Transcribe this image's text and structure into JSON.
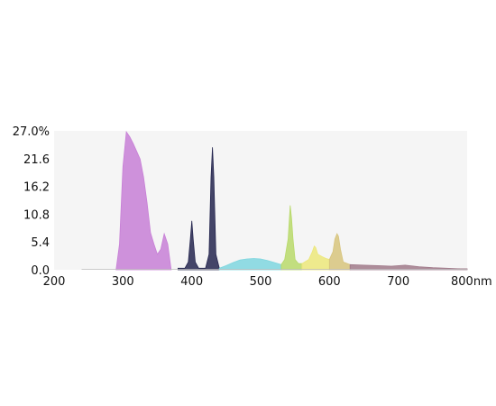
{
  "chart_data": {
    "type": "area",
    "xlim": [
      200,
      800
    ],
    "ylim": [
      0,
      27
    ],
    "yticks": [
      {
        "value": 27.0,
        "label": "27.0%"
      },
      {
        "value": 21.6,
        "label": "21.6"
      },
      {
        "value": 16.2,
        "label": "16.2"
      },
      {
        "value": 10.8,
        "label": "10.8"
      },
      {
        "value": 5.4,
        "label": "5.4"
      },
      {
        "value": 0.0,
        "label": "0.0"
      }
    ],
    "xticks": [
      {
        "value": 200,
        "label": "200"
      },
      {
        "value": 300,
        "label": "300"
      },
      {
        "value": 400,
        "label": "400"
      },
      {
        "value": 500,
        "label": "500"
      },
      {
        "value": 600,
        "label": "600"
      },
      {
        "value": 700,
        "label": "700"
      },
      {
        "value": 800,
        "label": "800nm"
      }
    ],
    "grid": false,
    "legend": "none",
    "background_color": "#f5f5f5",
    "series": [
      {
        "color": "#c77fd6",
        "x": [
          290,
          295,
          300,
          305,
          310,
          315,
          320,
          325,
          330,
          335,
          340,
          345,
          350,
          355,
          360,
          365,
          370
        ],
        "y": [
          0,
          5,
          20,
          26.8,
          25.8,
          24.5,
          23,
          21.5,
          18,
          13,
          7.2,
          5,
          3,
          4,
          7,
          5,
          0
        ]
      },
      {
        "color": "#25264f",
        "x": [
          380,
          390,
          395,
          398,
          400,
          402,
          405,
          410,
          420,
          425,
          428,
          430,
          432,
          435,
          440
        ],
        "y": [
          0.3,
          0.3,
          1.5,
          6,
          9.5,
          6,
          1.5,
          0.3,
          0.3,
          3,
          18,
          23.8,
          18,
          3,
          0.3
        ]
      },
      {
        "color": "#7fd6df",
        "x": [
          440,
          450,
          460,
          470,
          480,
          490,
          500,
          510,
          520,
          530
        ],
        "y": [
          0.3,
          0.8,
          1.4,
          1.9,
          2.1,
          2.2,
          2.1,
          1.8,
          1.4,
          1.0
        ]
      },
      {
        "color": "#b8d96a",
        "x": [
          530,
          535,
          540,
          543,
          545,
          547,
          550,
          555,
          560
        ],
        "y": [
          1.0,
          2,
          6,
          12.5,
          10,
          6,
          2,
          1.2,
          1.2
        ]
      },
      {
        "color": "#ece77a",
        "x": [
          560,
          570,
          575,
          578,
          580,
          583,
          590,
          595,
          600
        ],
        "y": [
          1.2,
          2,
          3.5,
          4.6,
          4.3,
          3,
          2.5,
          2.2,
          2
        ]
      },
      {
        "color": "#d7c47d",
        "x": [
          600,
          605,
          608,
          611,
          613,
          616,
          620,
          630
        ],
        "y": [
          2,
          3.5,
          6,
          7,
          6.5,
          4,
          1.5,
          1
        ]
      },
      {
        "color": "#a07a8a",
        "x": [
          630,
          650,
          670,
          690,
          710,
          730,
          750,
          770,
          790,
          800
        ],
        "y": [
          1,
          0.9,
          0.8,
          0.7,
          0.9,
          0.6,
          0.4,
          0.3,
          0.2,
          0.2
        ]
      }
    ]
  }
}
